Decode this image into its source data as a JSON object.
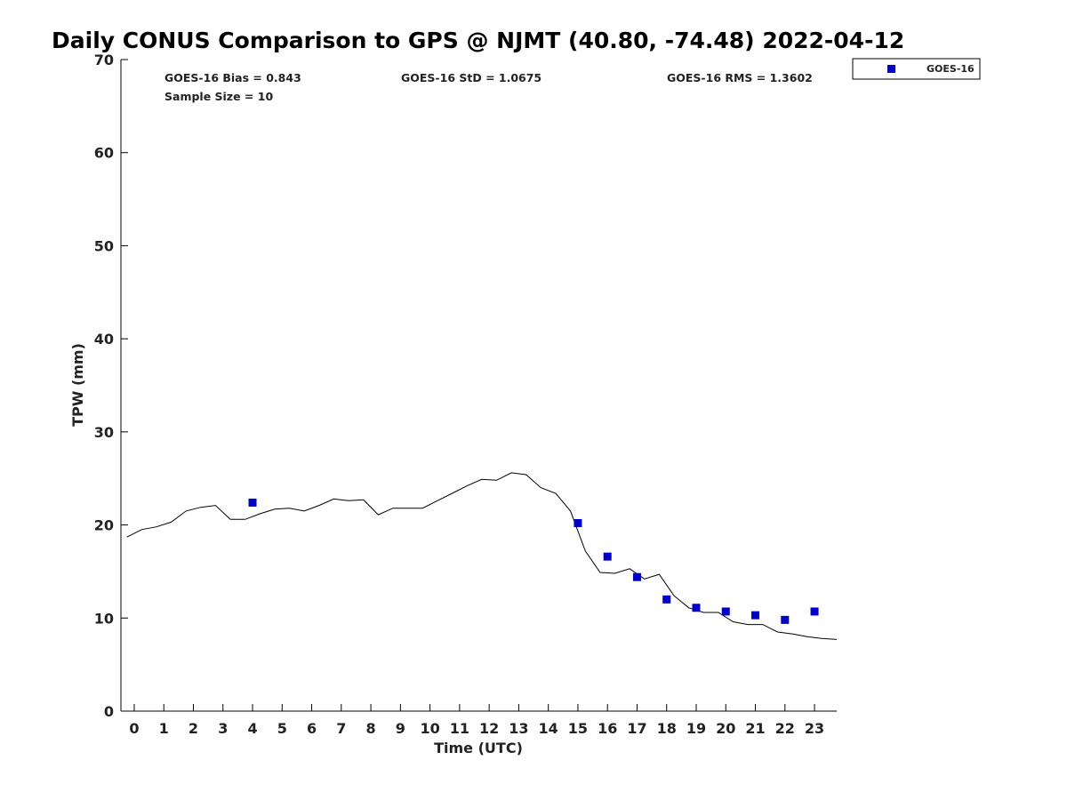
{
  "chart_data": {
    "type": "line",
    "title": "Daily CONUS Comparison to GPS @ NJMT (40.80, -74.48) 2022-04-12",
    "xlabel": "Time (UTC)",
    "ylabel": "TPW (mm)",
    "xlim": [
      -0.45,
      23.75
    ],
    "ylim": [
      0,
      70
    ],
    "xticks": [
      0,
      1,
      2,
      3,
      4,
      5,
      6,
      7,
      8,
      9,
      10,
      11,
      12,
      13,
      14,
      15,
      16,
      17,
      18,
      19,
      20,
      21,
      22,
      23
    ],
    "yticks": [
      0,
      10,
      20,
      30,
      40,
      50,
      60,
      70
    ],
    "grid": false,
    "legend_position": "top-right outside",
    "stats": [
      "GOES-16 Bias = 0.843",
      "Sample Size = 10",
      "GOES-16 StD = 1.0675",
      "GOES-16 RMS = 1.3602"
    ],
    "series": [
      {
        "type": "line",
        "color": "#000000",
        "x": [
          -0.25,
          0.25,
          0.75,
          1.25,
          1.75,
          2.25,
          2.75,
          3.25,
          3.75,
          4.25,
          4.75,
          5.25,
          5.75,
          6.25,
          6.75,
          7.25,
          7.75,
          8.25,
          8.75,
          9.25,
          9.75,
          10.25,
          10.75,
          11.25,
          11.75,
          12.25,
          12.75,
          13.25,
          13.75,
          14.25,
          14.75,
          15.25,
          15.75,
          16.25,
          16.75,
          17.25,
          17.75,
          18.25,
          18.75,
          19.25,
          19.75,
          20.25,
          20.75,
          21.25,
          21.75,
          22.25,
          22.75,
          23.25,
          23.75
        ],
        "y": [
          18.7,
          19.5,
          19.8,
          20.3,
          21.5,
          21.9,
          22.1,
          20.6,
          20.6,
          21.2,
          21.7,
          21.8,
          21.5,
          22.1,
          22.8,
          22.6,
          22.7,
          21.1,
          21.8,
          21.8,
          21.8,
          22.6,
          23.4,
          24.2,
          24.9,
          24.8,
          25.6,
          25.4,
          24.0,
          23.4,
          21.5,
          17.2,
          14.9,
          14.8,
          15.3,
          14.2,
          14.7,
          12.4,
          11.1,
          10.6,
          10.6,
          9.6,
          9.3,
          9.3,
          8.5,
          8.3,
          8.0,
          7.8,
          7.7
        ]
      },
      {
        "name": "GOES-16",
        "type": "scatter",
        "marker": "square",
        "color": "#0000cd",
        "x": [
          4,
          15,
          16,
          17,
          18,
          19,
          20,
          21,
          22,
          23
        ],
        "y": [
          22.4,
          20.2,
          16.6,
          14.4,
          12.0,
          11.1,
          10.7,
          10.3,
          9.8,
          10.7
        ]
      }
    ]
  }
}
